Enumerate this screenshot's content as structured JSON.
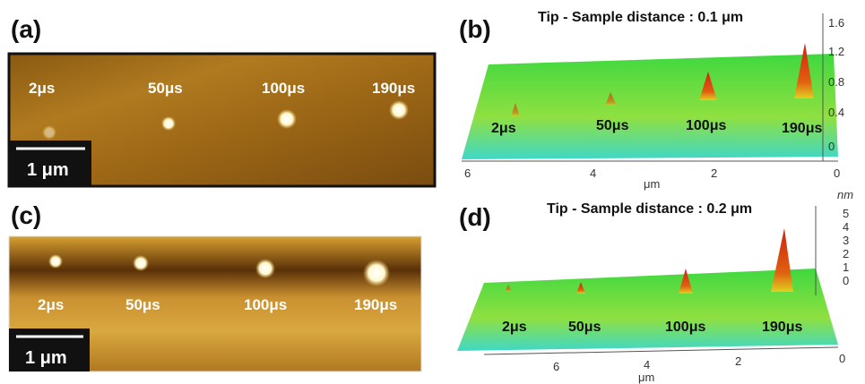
{
  "panels": [
    {
      "label": "(a)",
      "scale_bar": "1 μm",
      "markers": [
        "2μs",
        "50μs",
        "100μs",
        "190μs"
      ]
    },
    {
      "label": "(b)",
      "title": "Tip - Sample distance : 0.1 μm",
      "markers": [
        "2μs",
        "50μs",
        "100μs",
        "190μs"
      ],
      "x_ticks": [
        "6",
        "4",
        "2",
        "0"
      ],
      "x_unit": "μm",
      "z_ticks": [
        "1.6",
        "1.2",
        "0.8",
        "0.4",
        "0"
      ]
    },
    {
      "label": "(c)",
      "scale_bar": "1 μm",
      "markers": [
        "2μs",
        "50μs",
        "100μs",
        "190μs"
      ]
    },
    {
      "label": "(d)",
      "title": "Tip - Sample distance : 0.2 μm",
      "markers": [
        "2μs",
        "50μs",
        "100μs",
        "190μs"
      ],
      "x_ticks": [
        "6",
        "4",
        "2",
        "0"
      ],
      "x_unit": "μm",
      "z_unit": "nm",
      "z_ticks": [
        "5",
        "4",
        "3",
        "2",
        "1",
        "0"
      ]
    }
  ]
}
